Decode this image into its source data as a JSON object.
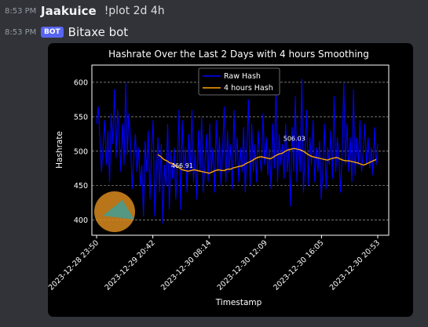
{
  "messages": [
    {
      "time": "8:53 PM",
      "author": "Jaakuice",
      "text": "!plot 2d 4h"
    },
    {
      "time": "8:53 PM",
      "badge": "BOT",
      "author": "Bitaxe bot"
    }
  ],
  "colors": {
    "raw": "#0000ff",
    "smooth": "#ffa500",
    "background": "#000000",
    "grid": "#bbbbbb"
  },
  "chart_data": {
    "type": "line",
    "title": "Hashrate Over the Last 2 Days with 4 hours Smoothing",
    "xlabel": "Timestamp",
    "ylabel": "Hashrate",
    "ylim": [
      378,
      625
    ],
    "yticks": [
      400,
      450,
      500,
      550,
      600
    ],
    "xticks": [
      "2023-12-28 23:50",
      "2023-12-29 20:42",
      "2023-12-30 08:14",
      "2023-12-30 12:09",
      "2023-12-30 16:05",
      "2023-12-30 20:53"
    ],
    "legend": {
      "position": "top-center",
      "entries": [
        "Raw Hash",
        "4 hours Hash"
      ]
    },
    "series": [
      {
        "name": "Raw Hash",
        "values": [
          540,
          565,
          520,
          470,
          505,
          545,
          480,
          530,
          455,
          555,
          510,
          590,
          490,
          560,
          520,
          470,
          540,
          480,
          600,
          495,
          555,
          515,
          445,
          490,
          525,
          470,
          505,
          450,
          480,
          405,
          515,
          470,
          530,
          430,
          500,
          545,
          405,
          470,
          520,
          440,
          510,
          395,
          480,
          450,
          540,
          415,
          500,
          460,
          505,
          430,
          480,
          560,
          415,
          545,
          470,
          505,
          440,
          525,
          470,
          560,
          455,
          500,
          430,
          530,
          470,
          550,
          440,
          480,
          525,
          455,
          540,
          470,
          505,
          440,
          545,
          470,
          520,
          450,
          500,
          565,
          455,
          530,
          470,
          510,
          445,
          560,
          480,
          520,
          455,
          505,
          470,
          535,
          440,
          500,
          575,
          450,
          540,
          470,
          510,
          455,
          530,
          490,
          470,
          555,
          480,
          520,
          465,
          505,
          445,
          540,
          475,
          600,
          455,
          525,
          480,
          510,
          460,
          540,
          470,
          505,
          420,
          535,
          470,
          580,
          455,
          520,
          470,
          605,
          440,
          500,
          560,
          450,
          520,
          480,
          545,
          455,
          505,
          470,
          515,
          430,
          470,
          540,
          445,
          505,
          480,
          530,
          460,
          580,
          470,
          520,
          490,
          440,
          500,
          600,
          480,
          540,
          470,
          520,
          455,
          590,
          465,
          520,
          480,
          545,
          470,
          500,
          540,
          480,
          520,
          475,
          505,
          465,
          535,
          480,
          510
        ],
        "comment": "highly variable raw series approx 390-620"
      },
      {
        "name": "4 hours Hash",
        "values": [
          495,
          492,
          488,
          486,
          483,
          482,
          478,
          476,
          473,
          472,
          471,
          472,
          473,
          472,
          471,
          470,
          469,
          468,
          470,
          472,
          473,
          472,
          472,
          474,
          474,
          476,
          477,
          478,
          479,
          482,
          484,
          486,
          489,
          491,
          492,
          491,
          490,
          489,
          491,
          494,
          496,
          497,
          500,
          502,
          503,
          504,
          503,
          502,
          500,
          497,
          494,
          492,
          491,
          490,
          489,
          488,
          487,
          489,
          490,
          491,
          489,
          487,
          486,
          486,
          485,
          484,
          483,
          481,
          480,
          482,
          484,
          486,
          488
        ]
      }
    ],
    "annotations": [
      {
        "text": "466.91",
        "x_index": 8,
        "y": 466.91
      },
      {
        "text": "506.03",
        "x_index": 45,
        "y": 506.03
      }
    ]
  }
}
